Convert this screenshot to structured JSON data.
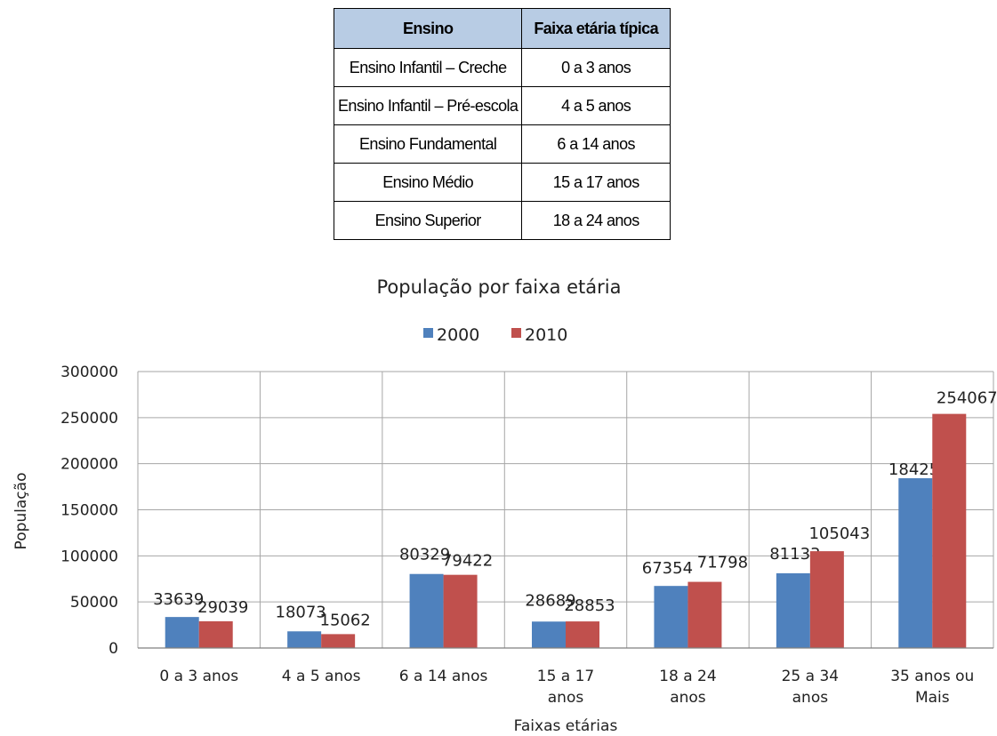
{
  "table": {
    "headers": [
      "Ensino",
      "Faixa etária típica"
    ],
    "rows": [
      [
        "Ensino Infantil – Creche",
        "0 a 3 anos"
      ],
      [
        "Ensino Infantil – Pré-escola",
        "4 a 5 anos"
      ],
      [
        "Ensino Fundamental",
        "6 a 14 anos"
      ],
      [
        "Ensino Médio",
        "15 a 17 anos"
      ],
      [
        "Ensino Superior",
        "18 a 24 anos"
      ]
    ]
  },
  "chart_data": {
    "type": "bar",
    "title": "População por faixa etária",
    "xlabel": "Faixas etárias",
    "ylabel": "População",
    "ylim": [
      0,
      300000
    ],
    "yticks": [
      0,
      50000,
      100000,
      150000,
      200000,
      250000,
      300000
    ],
    "grid": true,
    "legend_position": "top",
    "categories": [
      [
        "0 a 3 anos"
      ],
      [
        "4 a 5 anos"
      ],
      [
        "6 a 14 anos"
      ],
      [
        "15 a 17",
        "anos"
      ],
      [
        "18 a 24",
        "anos"
      ],
      [
        "25 a 34",
        "anos"
      ],
      [
        "35 anos ou",
        "Mais"
      ]
    ],
    "series": [
      {
        "name": "2000",
        "color": "#4f81bd",
        "values": [
          33639,
          18073,
          80329,
          28689,
          67354,
          81133,
          184251
        ]
      },
      {
        "name": "2010",
        "color": "#c0504d",
        "values": [
          29039,
          15062,
          79422,
          28853,
          71798,
          105043,
          254067
        ]
      }
    ]
  }
}
